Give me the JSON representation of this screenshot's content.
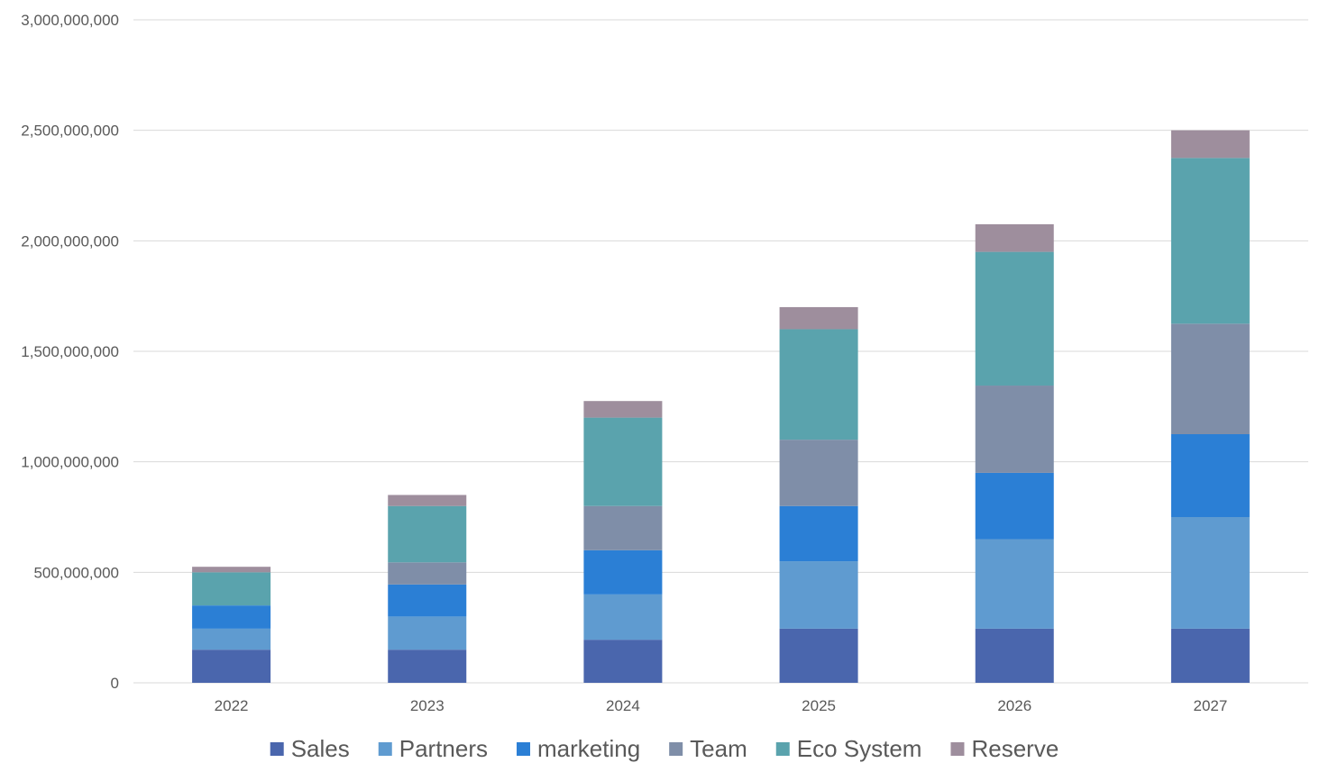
{
  "chart_data": {
    "type": "bar",
    "stacked": true,
    "categories": [
      "2022",
      "2023",
      "2024",
      "2025",
      "2026",
      "2027"
    ],
    "series": [
      {
        "name": "Sales",
        "color": "#4a66ad",
        "values": [
          150000000,
          150000000,
          195000000,
          245000000,
          245000000,
          245000000
        ]
      },
      {
        "name": "Partners",
        "color": "#5f9bd0",
        "values": [
          95000000,
          150000000,
          205000000,
          305000000,
          405000000,
          505000000
        ]
      },
      {
        "name": "marketing",
        "color": "#2b7fd5",
        "values": [
          105000000,
          145000000,
          200000000,
          250000000,
          300000000,
          375000000
        ]
      },
      {
        "name": "Team",
        "color": "#7f8ea8",
        "values": [
          0,
          100000000,
          200000000,
          300000000,
          395000000,
          500000000
        ]
      },
      {
        "name": "Eco System",
        "color": "#5aa3ad",
        "values": [
          150000000,
          255000000,
          400000000,
          500000000,
          605000000,
          750000000
        ]
      },
      {
        "name": "Reserve",
        "color": "#9e8e9d",
        "values": [
          25000000,
          50000000,
          75000000,
          100000000,
          125000000,
          125000000
        ]
      }
    ],
    "yticks": [
      "0",
      "500,000,000",
      "1,000,000,000",
      "1,500,000,000",
      "2,000,000,000",
      "2,500,000,000",
      "3,000,000,000"
    ],
    "ylim": [
      0,
      3000000000
    ],
    "grid": true,
    "legend_position": "bottom"
  }
}
